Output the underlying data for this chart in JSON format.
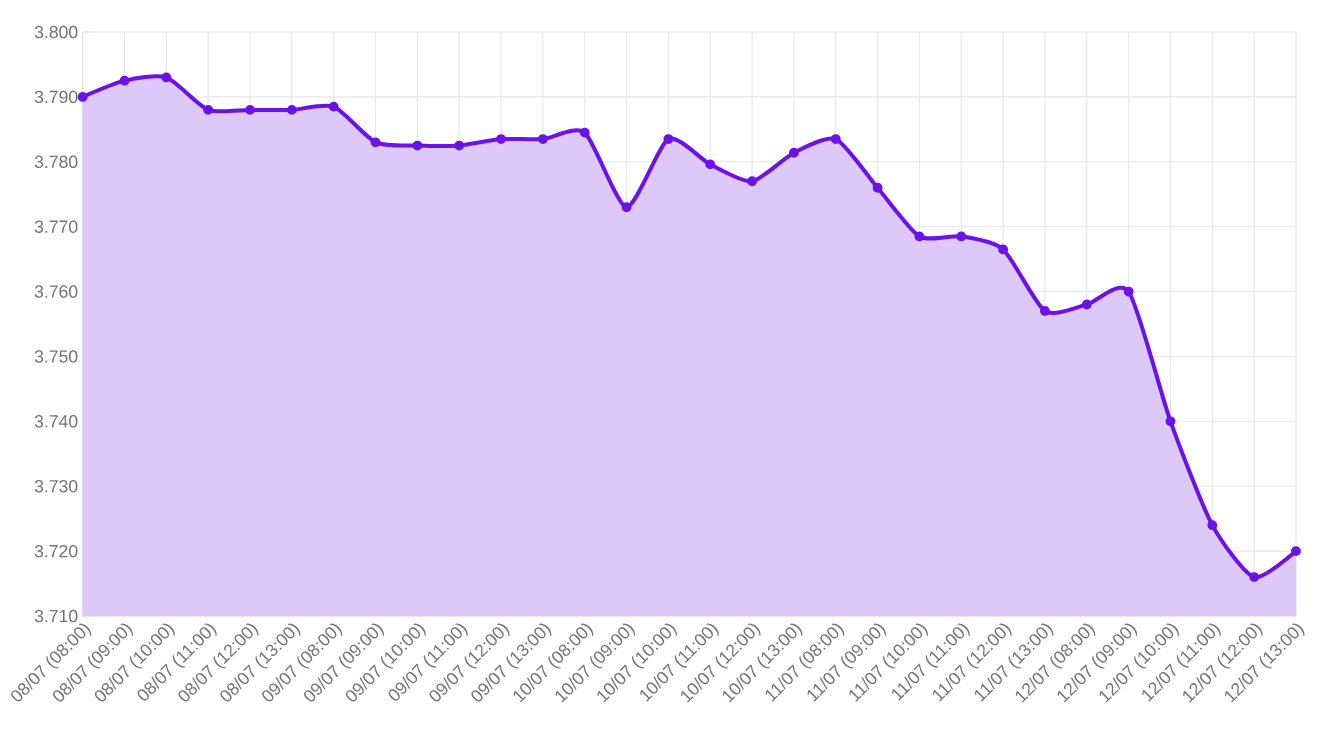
{
  "chart_data": {
    "type": "area",
    "categories": [
      "08/07 (08:00)",
      "08/07 (09:00)",
      "08/07 (10:00)",
      "08/07 (11:00)",
      "08/07 (12:00)",
      "08/07 (13:00)",
      "09/07 (08:00)",
      "09/07 (09:00)",
      "09/07 (10:00)",
      "09/07 (11:00)",
      "09/07 (12:00)",
      "09/07 (13:00)",
      "10/07 (08:00)",
      "10/07 (09:00)",
      "10/07 (10:00)",
      "10/07 (11:00)",
      "10/07 (12:00)",
      "10/07 (13:00)",
      "11/07 (08:00)",
      "11/07 (09:00)",
      "11/07 (10:00)",
      "11/07 (11:00)",
      "11/07 (12:00)",
      "11/07 (13:00)",
      "12/07 (08:00)",
      "12/07 (09:00)",
      "12/07 (10:00)",
      "12/07 (11:00)",
      "12/07 (12:00)",
      "12/07 (13:00)"
    ],
    "series": [
      {
        "color": "#6a12e8",
        "values": [
          3.79,
          3.7925,
          3.793,
          3.788,
          3.788,
          3.788,
          3.7885,
          3.783,
          3.7825,
          3.7825,
          3.7835,
          3.7835,
          3.7845,
          3.773,
          3.7835,
          3.7796,
          3.777,
          3.7814,
          3.7835,
          3.776,
          3.7685,
          3.7685,
          3.7665,
          3.757,
          3.758,
          3.76,
          3.74,
          3.724,
          3.716,
          3.72
        ]
      }
    ],
    "ylim": [
      3.71,
      3.8
    ],
    "yticks": [
      {
        "value": 3.71,
        "label": "3.710"
      },
      {
        "value": 3.72,
        "label": "3.720"
      },
      {
        "value": 3.73,
        "label": "3.730"
      },
      {
        "value": 3.74,
        "label": "3.740"
      },
      {
        "value": 3.75,
        "label": "3.750"
      },
      {
        "value": 3.76,
        "label": "3.760"
      },
      {
        "value": 3.77,
        "label": "3.770"
      },
      {
        "value": 3.78,
        "label": "3.780"
      },
      {
        "value": 3.79,
        "label": "3.790"
      },
      {
        "value": 3.8,
        "label": "3.800"
      }
    ],
    "grid": true,
    "marker": "circle"
  }
}
